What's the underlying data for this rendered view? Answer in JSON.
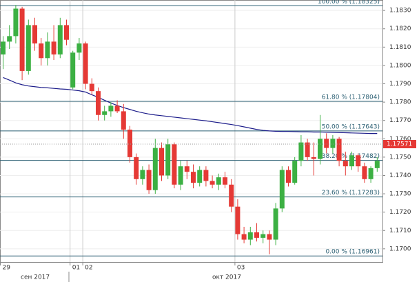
{
  "chart_data": {
    "type": "candlestick",
    "categories": [
      "29",
      null,
      null,
      null,
      null,
      null,
      null,
      null,
      null,
      null,
      null,
      "01",
      null,
      "02",
      null,
      null,
      null,
      null,
      null,
      null,
      null,
      null,
      null,
      null,
      null,
      null,
      null,
      null,
      null,
      null,
      null,
      null,
      null,
      null,
      null,
      null,
      null,
      "03",
      null,
      null,
      null,
      null,
      null,
      null,
      null,
      null,
      null,
      null,
      null,
      null,
      null,
      null,
      null,
      null,
      null,
      null,
      null,
      null,
      null,
      null
    ],
    "month_labels": [
      "сен 2017",
      "окт 2017"
    ],
    "open": [
      1.1806,
      1.1813,
      1.1816,
      1.1831,
      1.1797,
      1.1822,
      1.1812,
      1.1804,
      1.1813,
      1.1806,
      1.1822,
      1.1788,
      1.1807,
      1.1812,
      1.179,
      1.1786,
      1.1773,
      1.1775,
      1.1778,
      1.1775,
      1.1765,
      1.175,
      1.1738,
      1.1743,
      1.1732,
      1.1755,
      1.174,
      1.1757,
      1.1735,
      1.1745,
      1.1742,
      1.1736,
      1.1743,
      1.1737,
      1.1735,
      1.1739,
      1.1735,
      1.1723,
      1.1708,
      1.1705,
      1.1709,
      1.1706,
      1.1708,
      1.1705,
      1.1722,
      1.1743,
      1.1736,
      1.1748,
      1.1758,
      1.175,
      1.1749,
      1.176,
      1.1755,
      1.176,
      1.1748,
      1.1745,
      1.1751,
      1.1745,
      1.1738,
      1.1744
    ],
    "high": [
      1.1816,
      1.1822,
      1.1833,
      1.1832,
      1.1825,
      1.1826,
      1.1815,
      1.1818,
      1.1822,
      1.1826,
      1.1825,
      1.1808,
      1.1815,
      1.1813,
      1.1793,
      1.1788,
      1.1778,
      1.178,
      1.1781,
      1.1779,
      1.1767,
      1.1752,
      1.1745,
      1.1746,
      1.176,
      1.1758,
      1.176,
      1.1758,
      1.1748,
      1.1748,
      1.1746,
      1.1745,
      1.1745,
      1.174,
      1.1741,
      1.1742,
      1.1738,
      1.1727,
      1.1712,
      1.1712,
      1.1714,
      1.171,
      1.171,
      1.1725,
      1.1745,
      1.1745,
      1.175,
      1.1762,
      1.176,
      1.1758,
      1.1773,
      1.1763,
      1.1762,
      1.1761,
      1.1753,
      1.1753,
      1.1752,
      1.1747,
      1.1745,
      1.175
    ],
    "low": [
      1.1798,
      1.1809,
      1.1812,
      1.1792,
      1.1795,
      1.1808,
      1.18,
      1.18,
      1.1803,
      1.1804,
      1.1811,
      1.1787,
      1.1803,
      1.1787,
      1.1784,
      1.177,
      1.177,
      1.1772,
      1.1774,
      1.176,
      1.1747,
      1.1735,
      1.1735,
      1.173,
      1.173,
      1.1737,
      1.1738,
      1.1733,
      1.1732,
      1.1738,
      1.1733,
      1.1734,
      1.1734,
      1.1733,
      1.1732,
      1.1733,
      1.172,
      1.1705,
      1.1703,
      1.1702,
      1.1704,
      1.1703,
      1.1697,
      1.1702,
      1.172,
      1.1734,
      1.1735,
      1.1745,
      1.1748,
      1.174,
      1.1746,
      1.1752,
      1.1752,
      1.1745,
      1.174,
      1.1743,
      1.1742,
      1.1736,
      1.1736,
      1.1742
    ],
    "close": [
      1.1813,
      1.1816,
      1.1831,
      1.1797,
      1.1822,
      1.1812,
      1.1804,
      1.1813,
      1.1806,
      1.1822,
      1.1814,
      1.1807,
      1.1812,
      1.179,
      1.1786,
      1.1773,
      1.1775,
      1.1778,
      1.1775,
      1.1765,
      1.175,
      1.1738,
      1.1743,
      1.1732,
      1.1755,
      1.174,
      1.1757,
      1.1735,
      1.1745,
      1.1742,
      1.1736,
      1.1743,
      1.1737,
      1.1735,
      1.1739,
      1.1735,
      1.1723,
      1.1708,
      1.1705,
      1.1709,
      1.1706,
      1.1708,
      1.1705,
      1.1722,
      1.1743,
      1.1736,
      1.1748,
      1.1758,
      1.175,
      1.1749,
      1.176,
      1.1755,
      1.176,
      1.1748,
      1.1745,
      1.1751,
      1.1745,
      1.1738,
      1.1744,
      1.1748
    ],
    "up_color": "#3cb043",
    "down_color": "#e53935",
    "moving_average": {
      "color": "#1c1c8a",
      "values": [
        1.17934,
        1.1792,
        1.17905,
        1.17895,
        1.17888,
        1.17884,
        1.1788,
        1.17878,
        1.17875,
        1.17872,
        1.1787,
        1.17866,
        1.17862,
        1.17855,
        1.1784,
        1.17826,
        1.1781,
        1.17795,
        1.17782,
        1.1777,
        1.1776,
        1.1775,
        1.17742,
        1.17735,
        1.1773,
        1.17726,
        1.17722,
        1.17718,
        1.17714,
        1.1771,
        1.17706,
        1.17702,
        1.17698,
        1.17693,
        1.17688,
        1.17683,
        1.17678,
        1.17672,
        1.17665,
        1.17658,
        1.17651,
        1.17646,
        1.17643,
        1.17641,
        1.1764,
        1.1764,
        1.17639,
        1.17638,
        1.17638,
        1.17637,
        1.17637,
        1.17636,
        1.17635,
        1.17634,
        1.17633,
        1.17632,
        1.17631,
        1.1763,
        1.17629,
        1.17629
      ]
    },
    "levels": [
      {
        "value": 1.18325,
        "label": "100.00 % (1.18325)"
      },
      {
        "value": 1.17804,
        "label": "61.80 % (1.17804)"
      },
      {
        "value": 1.17643,
        "label": "50.00 % (1.17643)"
      },
      {
        "value": 1.17482,
        "label": "38.20 % (1.17482)"
      },
      {
        "value": 1.17283,
        "label": "23.60 % (1.17283)"
      },
      {
        "value": 1.16961,
        "label": "0.00 % (1.16961)"
      }
    ],
    "level_color": "#2b5f73",
    "current_price": {
      "value": 1.17571,
      "label": "1.17571"
    },
    "ylim": [
      1.16928,
      1.18357
    ],
    "yticks": [
      {
        "value": 1.17,
        "label": "1.1700"
      },
      {
        "value": 1.171,
        "label": "1.1710"
      },
      {
        "value": 1.172,
        "label": "1.1720"
      },
      {
        "value": 1.173,
        "label": "1.1730"
      },
      {
        "value": 1.174,
        "label": "1.1740"
      },
      {
        "value": 1.175,
        "label": "1.1750"
      },
      {
        "value": 1.176,
        "label": "1.1760"
      },
      {
        "value": 1.177,
        "label": "1.1770"
      },
      {
        "value": 1.178,
        "label": "1.1780"
      },
      {
        "value": 1.179,
        "label": "1.1790"
      },
      {
        "value": 1.18,
        "label": "1.1800"
      },
      {
        "value": 1.181,
        "label": "1.1810"
      },
      {
        "value": 1.182,
        "label": "1.1820"
      },
      {
        "value": 1.183,
        "label": "1.1830"
      }
    ]
  }
}
